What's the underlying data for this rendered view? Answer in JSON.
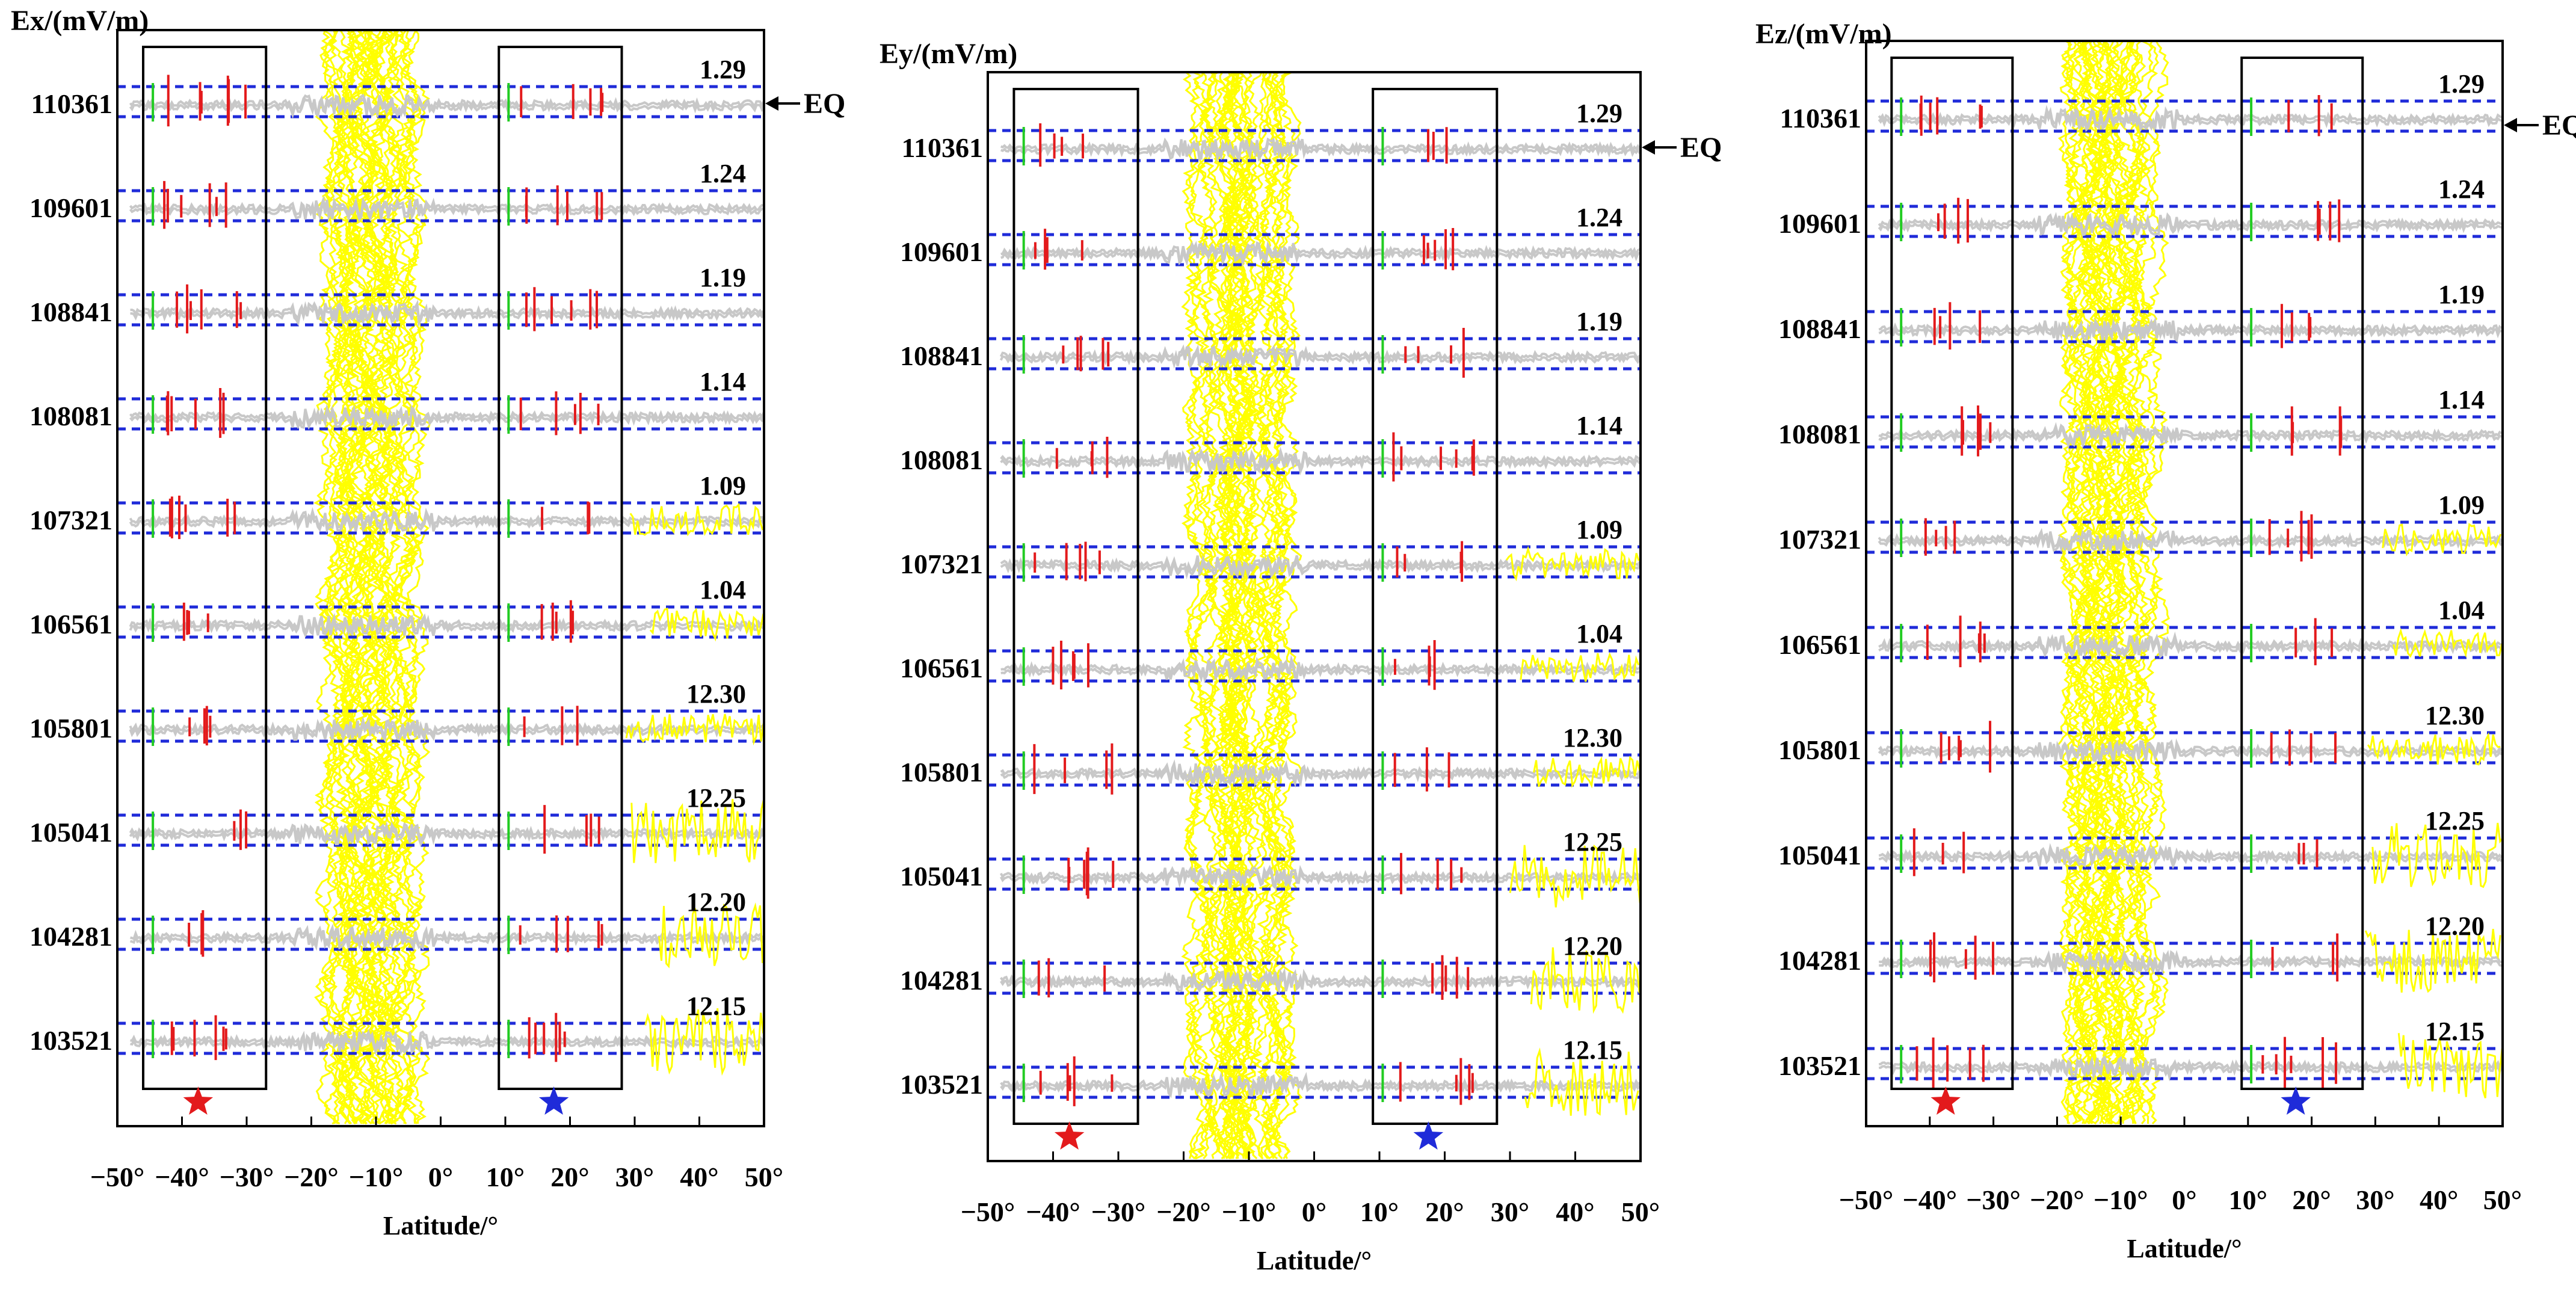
{
  "chart_data": [
    {
      "type": "line",
      "title": "",
      "ylabel": "Ex/(mV/m)",
      "xlabel": "Latitude/°",
      "xlim": [
        -50,
        50
      ],
      "x_ticks": [
        -50,
        -40,
        -30,
        -20,
        -10,
        0,
        10,
        20,
        30,
        40,
        50
      ],
      "x_tick_labels": [
        "−50°",
        "−40°",
        "−30°",
        "−20°",
        "−10°",
        "0°",
        "10°",
        "20°",
        "30°",
        "40°",
        "50°"
      ],
      "orbit_labels": [
        "110361",
        "109601",
        "108841",
        "108081",
        "107321",
        "106561",
        "105801",
        "105041",
        "104281",
        "103521"
      ],
      "date_labels": [
        "1.29",
        "1.24",
        "1.19",
        "1.14",
        "1.09",
        "1.04",
        "12.30",
        "12.25",
        "12.20",
        "12.15"
      ],
      "eq_label": "EQ",
      "eq_orbit": "110361",
      "boxes_latitude": [
        [
          -46,
          -27
        ],
        [
          9,
          28
        ]
      ],
      "stars": [
        {
          "latitude": -37.5,
          "color": "#e31a1c"
        },
        {
          "latitude": 17.5,
          "color": "#1f2bd9"
        }
      ],
      "noisy_band_latitude": [
        -19,
        -3
      ]
    },
    {
      "type": "line",
      "title": "",
      "ylabel": "Ey/(mV/m)",
      "xlabel": "Latitude/°",
      "xlim": [
        -50,
        50
      ],
      "x_ticks": [
        -50,
        -40,
        -30,
        -20,
        -10,
        0,
        10,
        20,
        30,
        40,
        50
      ],
      "x_tick_labels": [
        "−50°",
        "−40°",
        "−30°",
        "−20°",
        "−10°",
        "0°",
        "10°",
        "20°",
        "30°",
        "40°",
        "50°"
      ],
      "orbit_labels": [
        "110361",
        "109601",
        "108841",
        "108081",
        "107321",
        "106561",
        "105801",
        "105041",
        "104281",
        "103521"
      ],
      "date_labels": [
        "1.29",
        "1.24",
        "1.19",
        "1.14",
        "1.09",
        "1.04",
        "12.30",
        "12.25",
        "12.20",
        "12.15"
      ],
      "eq_label": "EQ",
      "eq_orbit": "110361",
      "boxes_latitude": [
        [
          -46,
          -27
        ],
        [
          9,
          28
        ]
      ],
      "stars": [
        {
          "latitude": -37.5,
          "color": "#e31a1c"
        },
        {
          "latitude": 17.5,
          "color": "#1f2bd9"
        }
      ],
      "noisy_band_latitude": [
        -19,
        -3
      ]
    },
    {
      "type": "line",
      "title": "",
      "ylabel": "Ez/(mV/m)",
      "xlabel": "Latitude/°",
      "xlim": [
        -50,
        50
      ],
      "x_ticks": [
        -50,
        -40,
        -30,
        -20,
        -10,
        0,
        10,
        20,
        30,
        40,
        50
      ],
      "x_tick_labels": [
        "−50°",
        "−40°",
        "−30°",
        "−20°",
        "−10°",
        "0°",
        "10°",
        "20°",
        "30°",
        "40°",
        "50°"
      ],
      "orbit_labels": [
        "110361",
        "109601",
        "108841",
        "108081",
        "107321",
        "106561",
        "105801",
        "105041",
        "104281",
        "103521"
      ],
      "date_labels": [
        "1.29",
        "1.24",
        "1.19",
        "1.14",
        "1.09",
        "1.04",
        "12.30",
        "12.25",
        "12.20",
        "12.15"
      ],
      "eq_label": "EQ",
      "eq_orbit": "110361",
      "boxes_latitude": [
        [
          -46,
          -27
        ],
        [
          9,
          28
        ]
      ],
      "stars": [
        {
          "latitude": -37.5,
          "color": "#e31a1c"
        },
        {
          "latitude": 17.5,
          "color": "#1f2bd9"
        }
      ],
      "noisy_band_latitude": [
        -19,
        -3
      ]
    }
  ],
  "colors": {
    "signal": "#c8c8c8",
    "disturbance": "#ffff00",
    "anomaly": "#e31a1c",
    "onset_marker": "#22cc22",
    "threshold": "#1f2bd9",
    "box": "#000000"
  }
}
